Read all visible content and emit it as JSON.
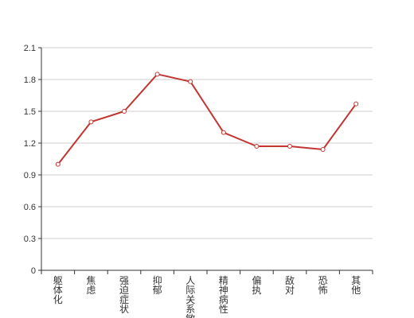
{
  "chart_data": {
    "type": "line",
    "title": "",
    "xlabel": "",
    "ylabel": "",
    "categories": [
      "躯体化",
      "焦虑",
      "强迫症状",
      "抑郁",
      "人际关系敏感",
      "精神病性",
      "偏执",
      "敌对",
      "恐怖",
      "其他"
    ],
    "series": [
      {
        "values": [
          1.0,
          1.4,
          1.5,
          1.85,
          1.78,
          1.3,
          1.17,
          1.17,
          1.14,
          1.57
        ]
      }
    ],
    "ylim": [
      0,
      2.1
    ],
    "yticks": [
      "0",
      "0.3",
      "0.6",
      "0.9",
      "1.2",
      "1.5",
      "1.8",
      "2.1"
    ],
    "grid": true,
    "legend": "none",
    "colors": {
      "line": "#c23531",
      "grid": "#cccccc",
      "axis": "#333333",
      "marker_fill": "#ffffff"
    }
  }
}
